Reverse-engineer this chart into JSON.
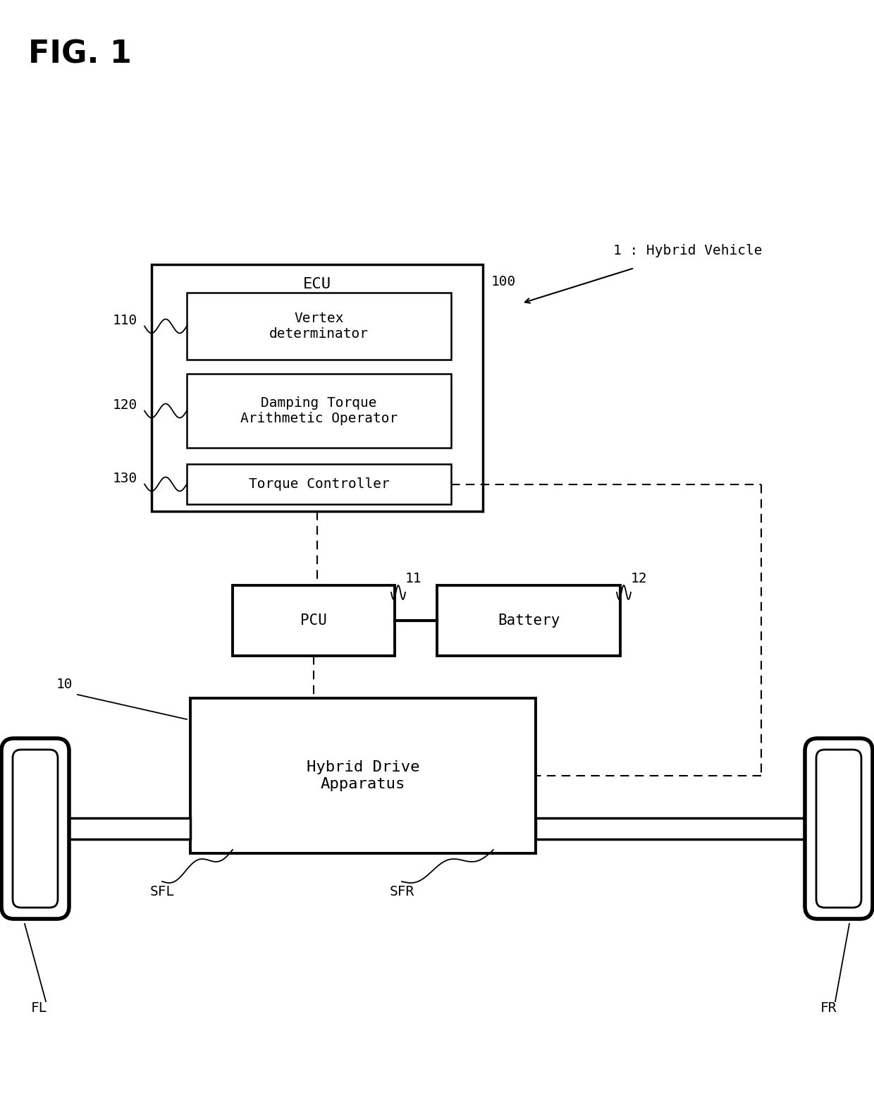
{
  "fig_title": "FIG. 1",
  "label_hybrid_vehicle": "1 : Hybrid Vehicle",
  "label_ecu": "ECU",
  "label_ecu_num": "100",
  "label_110": "110",
  "label_120": "120",
  "label_130": "130",
  "label_10": "10",
  "label_11": "11",
  "label_12": "12",
  "box_vertex": "Vertex\ndeterminator",
  "box_damping": "Damping Torque\nArithmetic Operator",
  "box_torque": "Torque Controller",
  "box_pcu": "PCU",
  "box_battery": "Battery",
  "box_hybrid": "Hybrid Drive\nApparatus",
  "label_sfl": "SFL",
  "label_sfr": "SFR",
  "label_fl": "FL",
  "label_fr": "FR",
  "bg_color": "#ffffff",
  "line_color": "#000000",
  "font_size_title": 32,
  "font_size_label": 14,
  "font_size_box": 14
}
